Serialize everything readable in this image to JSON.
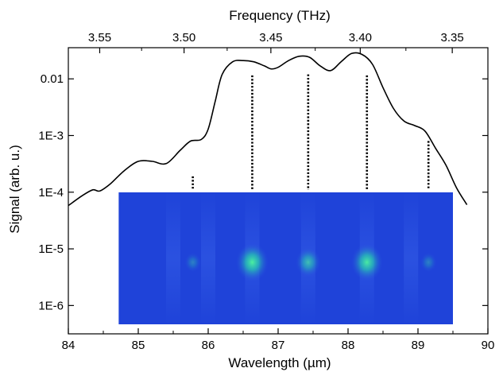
{
  "chart_data": {
    "type": "line",
    "xlabel": "Wavelength (µm)",
    "x2label": "Frequency (THz)",
    "ylabel": "Signal (arb. u.)",
    "xlim": [
      84,
      90
    ],
    "ylim_log10": [
      -6.5,
      -1.45
    ],
    "y_scale": "log",
    "x_ticks": [
      84,
      85,
      86,
      87,
      88,
      89,
      90
    ],
    "x_tick_labels": [
      "84",
      "85",
      "86",
      "87",
      "88",
      "89",
      "90"
    ],
    "x2_ticks_thz": [
      3.55,
      3.5,
      3.45,
      3.4,
      3.35
    ],
    "x2_tick_labels": [
      "3.55",
      "3.50",
      "3.45",
      "3.40",
      "3.35"
    ],
    "y_ticks": [
      0.01,
      0.001,
      0.0001,
      1e-05,
      1e-06
    ],
    "y_tick_labels": [
      "0.01",
      "1E-3",
      "1E-4",
      "1E-5",
      "1E-6"
    ],
    "series": [
      {
        "x": [
          84.0,
          84.2,
          84.35,
          84.45,
          84.6,
          84.8,
          85.0,
          85.2,
          85.4,
          85.6,
          85.75,
          85.9,
          86.0,
          86.1,
          86.2,
          86.35,
          86.5,
          86.65,
          86.8,
          86.9,
          87.0,
          87.15,
          87.3,
          87.45,
          87.6,
          87.75,
          87.9,
          88.05,
          88.2,
          88.35,
          88.5,
          88.65,
          88.8,
          88.95,
          89.1,
          89.25,
          89.4,
          89.55,
          89.7
        ],
        "y": [
          5.8e-05,
          8.7e-05,
          0.00011,
          0.000105,
          0.00014,
          0.00024,
          0.00035,
          0.00035,
          0.00032,
          0.00055,
          0.0008,
          0.00085,
          0.0013,
          0.004,
          0.012,
          0.02,
          0.021,
          0.02,
          0.017,
          0.015,
          0.016,
          0.021,
          0.025,
          0.024,
          0.017,
          0.014,
          0.02,
          0.028,
          0.027,
          0.018,
          0.007,
          0.003,
          0.0018,
          0.0015,
          0.0012,
          0.0006,
          0.0003,
          0.00012,
          6e-05
        ]
      }
    ],
    "markers": [
      {
        "x": 85.78,
        "y_top": 0.00019
      },
      {
        "x": 86.63,
        "y_top": 0.0115
      },
      {
        "x": 87.43,
        "y_top": 0.012
      },
      {
        "x": 88.27,
        "y_top": 0.0115
      },
      {
        "x": 89.15,
        "y_top": 0.0008
      }
    ],
    "inset_image": {
      "description_spots": [
        {
          "x": 86.63,
          "intensity": 1.0
        },
        {
          "x": 87.43,
          "intensity": 0.6
        },
        {
          "x": 88.27,
          "intensity": 0.95
        },
        {
          "x": 85.78,
          "intensity": 0.15
        },
        {
          "x": 89.15,
          "intensity": 0.15
        }
      ],
      "background_color": "#1f43d9",
      "spot_color": "#26d89a"
    },
    "grid": false,
    "legend": "none"
  }
}
